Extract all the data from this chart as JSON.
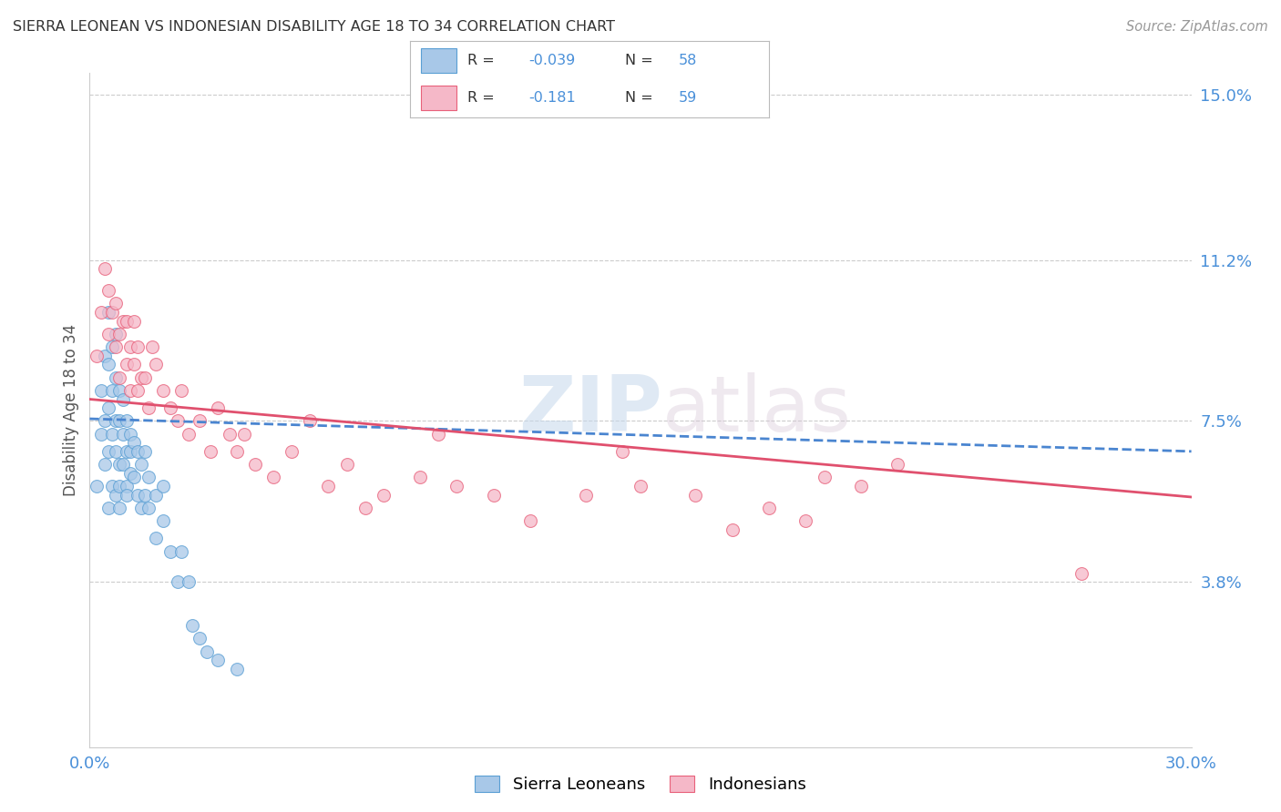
{
  "title": "SIERRA LEONEAN VS INDONESIAN DISABILITY AGE 18 TO 34 CORRELATION CHART",
  "source": "Source: ZipAtlas.com",
  "ylabel": "Disability Age 18 to 34",
  "xlim": [
    0.0,
    0.3
  ],
  "ylim": [
    0.0,
    0.155
  ],
  "ytick_labels": [
    "3.8%",
    "7.5%",
    "11.2%",
    "15.0%"
  ],
  "ytick_positions": [
    0.038,
    0.075,
    0.112,
    0.15
  ],
  "legend_label1": "Sierra Leoneans",
  "legend_label2": "Indonesians",
  "watermark": "ZIPatlas",
  "blue_color": "#a8c8e8",
  "pink_color": "#f5b8c8",
  "blue_edge_color": "#5a9fd4",
  "pink_edge_color": "#e8607a",
  "blue_line_color": "#4a85d0",
  "pink_line_color": "#e0506e",
  "background_color": "#ffffff",
  "title_color": "#333333",
  "axis_label_color": "#555555",
  "tick_color": "#4a90d9",
  "grid_color": "#cccccc",
  "blue_line_intercept": 0.0755,
  "blue_line_slope": -0.025,
  "pink_line_intercept": 0.08,
  "pink_line_slope": -0.075,
  "sierra_x": [
    0.002,
    0.003,
    0.003,
    0.004,
    0.004,
    0.004,
    0.005,
    0.005,
    0.005,
    0.005,
    0.005,
    0.006,
    0.006,
    0.006,
    0.006,
    0.007,
    0.007,
    0.007,
    0.007,
    0.007,
    0.008,
    0.008,
    0.008,
    0.008,
    0.008,
    0.009,
    0.009,
    0.009,
    0.01,
    0.01,
    0.01,
    0.01,
    0.011,
    0.011,
    0.011,
    0.012,
    0.012,
    0.013,
    0.013,
    0.014,
    0.014,
    0.015,
    0.015,
    0.016,
    0.016,
    0.018,
    0.018,
    0.02,
    0.02,
    0.022,
    0.024,
    0.025,
    0.027,
    0.028,
    0.03,
    0.032,
    0.035,
    0.04
  ],
  "sierra_y": [
    0.06,
    0.072,
    0.082,
    0.065,
    0.075,
    0.09,
    0.055,
    0.068,
    0.078,
    0.088,
    0.1,
    0.06,
    0.072,
    0.082,
    0.092,
    0.058,
    0.068,
    0.075,
    0.085,
    0.095,
    0.055,
    0.065,
    0.075,
    0.082,
    0.06,
    0.065,
    0.072,
    0.08,
    0.06,
    0.068,
    0.075,
    0.058,
    0.063,
    0.072,
    0.068,
    0.062,
    0.07,
    0.058,
    0.068,
    0.055,
    0.065,
    0.058,
    0.068,
    0.055,
    0.062,
    0.048,
    0.058,
    0.052,
    0.06,
    0.045,
    0.038,
    0.045,
    0.038,
    0.028,
    0.025,
    0.022,
    0.02,
    0.018
  ],
  "indonesian_x": [
    0.002,
    0.003,
    0.004,
    0.005,
    0.005,
    0.006,
    0.007,
    0.007,
    0.008,
    0.008,
    0.009,
    0.01,
    0.01,
    0.011,
    0.011,
    0.012,
    0.012,
    0.013,
    0.013,
    0.014,
    0.015,
    0.016,
    0.017,
    0.018,
    0.02,
    0.022,
    0.024,
    0.025,
    0.027,
    0.03,
    0.033,
    0.035,
    0.038,
    0.04,
    0.042,
    0.045,
    0.05,
    0.055,
    0.06,
    0.065,
    0.07,
    0.075,
    0.08,
    0.09,
    0.095,
    0.1,
    0.11,
    0.12,
    0.135,
    0.145,
    0.15,
    0.165,
    0.175,
    0.185,
    0.195,
    0.2,
    0.21,
    0.22,
    0.27
  ],
  "indonesian_y": [
    0.09,
    0.1,
    0.11,
    0.095,
    0.105,
    0.1,
    0.092,
    0.102,
    0.085,
    0.095,
    0.098,
    0.088,
    0.098,
    0.082,
    0.092,
    0.088,
    0.098,
    0.082,
    0.092,
    0.085,
    0.085,
    0.078,
    0.092,
    0.088,
    0.082,
    0.078,
    0.075,
    0.082,
    0.072,
    0.075,
    0.068,
    0.078,
    0.072,
    0.068,
    0.072,
    0.065,
    0.062,
    0.068,
    0.075,
    0.06,
    0.065,
    0.055,
    0.058,
    0.062,
    0.072,
    0.06,
    0.058,
    0.052,
    0.058,
    0.068,
    0.06,
    0.058,
    0.05,
    0.055,
    0.052,
    0.062,
    0.06,
    0.065,
    0.04
  ]
}
